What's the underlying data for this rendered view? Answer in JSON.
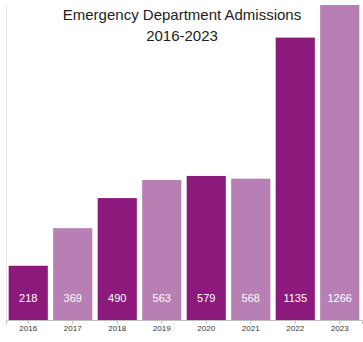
{
  "chart_data": {
    "type": "bar",
    "title": "Emergency Department Admissions",
    "subtitle": "2016-2023",
    "categories": [
      "2016",
      "2017",
      "2018",
      "2019",
      "2020",
      "2021",
      "2022",
      "2023"
    ],
    "values": [
      218,
      369,
      490,
      563,
      579,
      568,
      1135,
      1266
    ],
    "colors": [
      "#8c1a7c",
      "#b77fb4",
      "#8c1a7c",
      "#b77fb4",
      "#8c1a7c",
      "#b77fb4",
      "#8c1a7c",
      "#b77fb4"
    ],
    "ylim": [
      0,
      1266
    ],
    "grid": false,
    "data_labels": true,
    "tick_labels": "x"
  }
}
